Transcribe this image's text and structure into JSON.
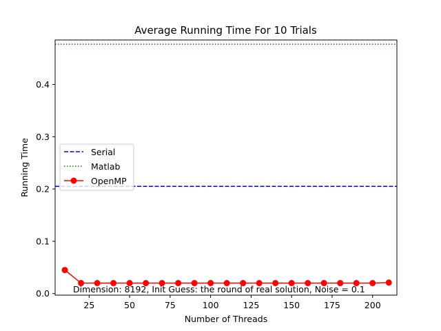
{
  "chart_data": {
    "type": "line",
    "title": "Average Running Time For 10 Trials",
    "xlabel": "Number of Threads",
    "ylabel": "Running Time",
    "xlim": [
      4,
      215
    ],
    "ylim": [
      -0.003,
      0.485
    ],
    "xticks": [
      25,
      50,
      75,
      100,
      125,
      150,
      175,
      200
    ],
    "yticks": [
      0.0,
      0.1,
      0.2,
      0.3,
      0.4
    ],
    "ytick_labels": [
      "0.0",
      "0.1",
      "0.2",
      "0.3",
      "0.4"
    ],
    "grid": false,
    "legend_position": "center-left",
    "annotation": "Dimension: 8192, Init Guess: the round of real solution, Noise = 0.1",
    "series": [
      {
        "name": "Serial",
        "style": "dashed",
        "color": "#0000ff",
        "value": 0.205
      },
      {
        "name": "Matlab",
        "style": "dotted",
        "color": "#008000",
        "value": 0.477
      },
      {
        "name": "OpenMP",
        "style": "solid-marker",
        "color": "#ff0000",
        "x": [
          10,
          20,
          30,
          40,
          50,
          60,
          70,
          80,
          90,
          100,
          110,
          120,
          130,
          140,
          150,
          160,
          170,
          180,
          190,
          200,
          210
        ],
        "y": [
          0.045,
          0.02,
          0.02,
          0.02,
          0.02,
          0.02,
          0.02,
          0.02,
          0.02,
          0.02,
          0.02,
          0.02,
          0.02,
          0.02,
          0.02,
          0.02,
          0.02,
          0.02,
          0.02,
          0.02,
          0.021
        ]
      }
    ]
  }
}
